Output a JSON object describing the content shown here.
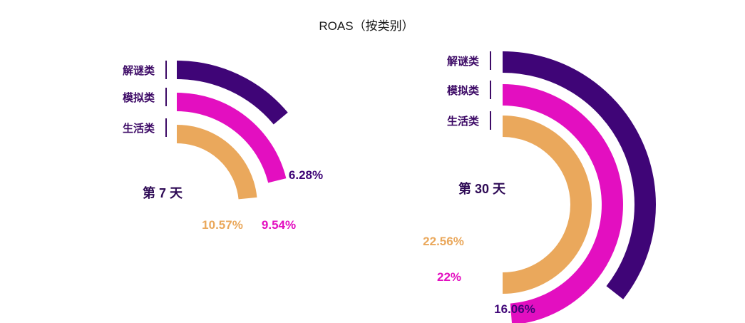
{
  "colors": {
    "解谜类": "#3f0577",
    "模拟类": "#e30fc0",
    "生活类": "#eaa85c",
    "title": "#1a1a1a",
    "label": "#3d0a66"
  },
  "chart_data": [
    {
      "type": "radial-bar",
      "title": "ROAS（按类别）",
      "period": "第 7 天",
      "categories": [
        "解谜类",
        "模拟类",
        "生活类"
      ],
      "values": [
        6.28,
        9.54,
        10.57
      ],
      "value_labels": [
        "6.28%",
        "9.54%",
        "10.57%"
      ]
    },
    {
      "type": "radial-bar",
      "period": "第 30 天",
      "categories": [
        "解谜类",
        "模拟类",
        "生活类"
      ],
      "values": [
        16.06,
        22,
        22.56
      ],
      "value_labels": [
        "16.06%",
        "22%",
        "22.56%"
      ]
    }
  ]
}
